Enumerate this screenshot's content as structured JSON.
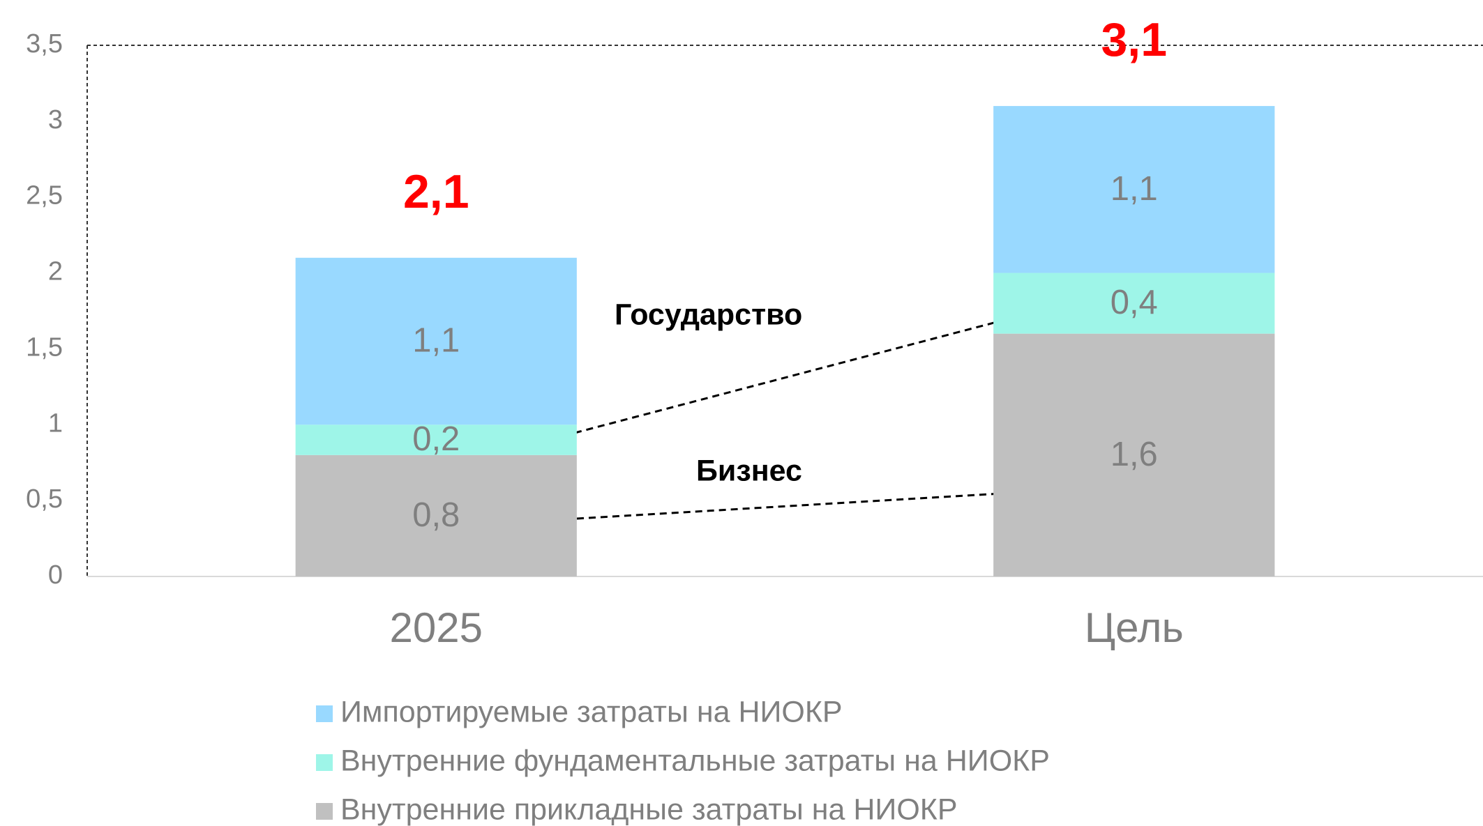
{
  "chart_data": {
    "type": "stacked_bar",
    "categories": [
      "2025",
      "Цель"
    ],
    "series": [
      {
        "name": "Внутренние прикладные затраты на НИОКР",
        "color": "#c0c0c0",
        "values": [
          0.8,
          1.6
        ],
        "value_labels": [
          "0,8",
          "1,6"
        ]
      },
      {
        "name": "Внутренние фундаментальные затраты на НИОКР",
        "color": "#9ef5e8",
        "values": [
          0.2,
          0.4
        ],
        "value_labels": [
          "0,2",
          "0,4"
        ]
      },
      {
        "name": "Импортируемые затраты на НИОКР",
        "color": "#99d9ff",
        "values": [
          1.1,
          1.1
        ],
        "value_labels": [
          "1,1",
          "1,1"
        ]
      }
    ],
    "totals": [
      2.1,
      3.1
    ],
    "total_labels": [
      "2,1",
      "3,1"
    ],
    "annotations": [
      "Государство",
      "Бизнес"
    ],
    "ylim": [
      0,
      3.5
    ],
    "yticks": [
      0,
      {
        "value": 0.5,
        "label": "0,5"
      },
      1,
      {
        "value": 1.5,
        "label": "1,5"
      },
      2,
      {
        "value": 2.5,
        "label": "2,5"
      },
      3,
      {
        "value": 3.5,
        "label": "3,5"
      }
    ],
    "grid": false,
    "legend": "bottom"
  }
}
